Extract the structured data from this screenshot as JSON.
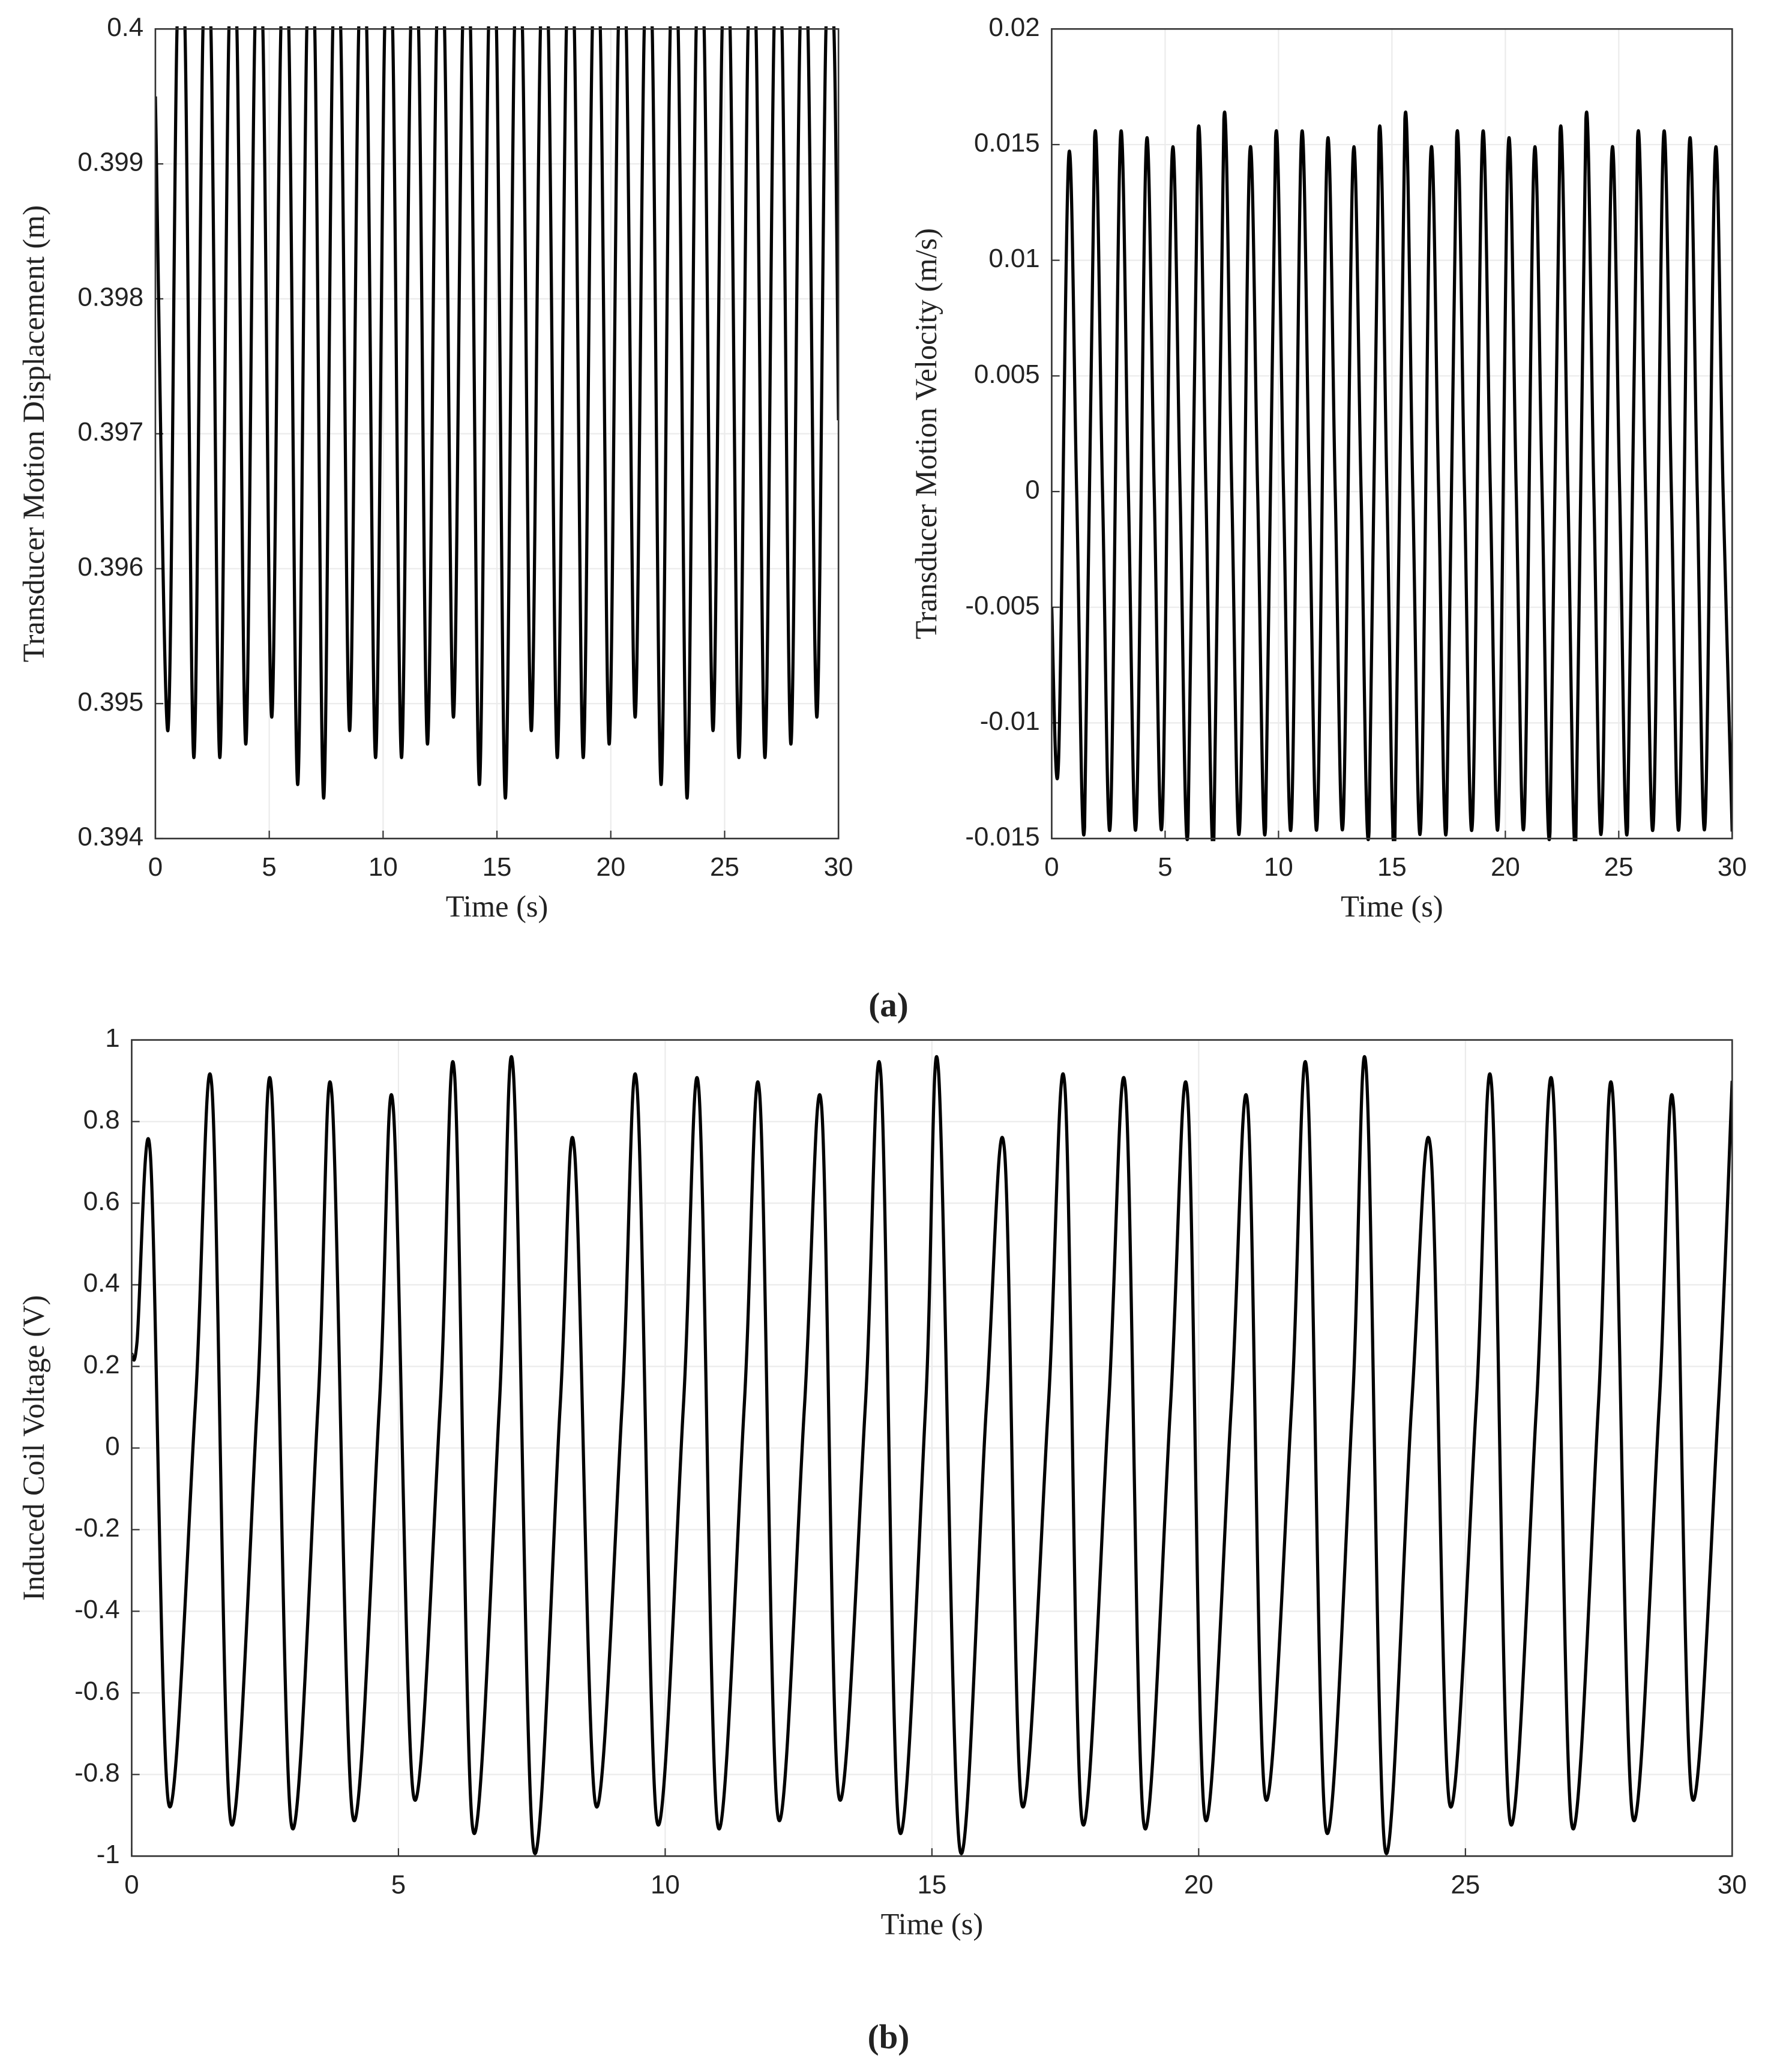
{
  "chart_data": [
    {
      "type": "line",
      "ylabel": "Transducer Motion Displacement (m)",
      "xlabel": "Time (s)",
      "color": "#000000",
      "grid": true,
      "xlim": [
        0,
        30
      ],
      "xticks": [
        0,
        5,
        10,
        15,
        20,
        25,
        30
      ],
      "ylim": [
        0.394,
        0.4
      ],
      "yticks": [
        0.394,
        0.395,
        0.396,
        0.397,
        0.398,
        0.399,
        0.4
      ],
      "x": [
        0,
        0.55,
        0.95,
        1.3,
        1.69,
        2.09,
        2.44,
        2.83,
        3.23,
        3.58,
        3.97,
        4.37,
        4.72,
        5.11,
        5.51,
        5.86,
        6.25,
        6.65,
        7.0,
        7.39,
        7.79,
        8.14,
        8.53,
        8.93,
        9.28,
        9.67,
        10.07,
        10.42,
        10.81,
        11.21,
        11.56,
        11.95,
        12.35,
        12.7,
        13.09,
        13.49,
        13.84,
        14.23,
        14.63,
        14.98,
        15.37,
        15.77,
        16.12,
        16.51,
        16.91,
        17.26,
        17.65,
        18.05,
        18.4,
        18.79,
        19.19,
        19.54,
        19.93,
        20.33,
        20.68,
        21.07,
        21.47,
        21.82,
        22.21,
        22.61,
        22.96,
        23.35,
        23.75,
        24.1,
        24.49,
        24.89,
        25.24,
        25.63,
        26.03,
        26.38,
        26.77,
        27.17,
        27.52,
        27.91,
        28.31,
        28.66,
        29.05,
        29.45,
        29.8,
        30
      ],
      "values": [
        0.3995,
        0.3948,
        0.4,
        0.4,
        0.3946,
        0.4,
        0.4,
        0.3946,
        0.4,
        0.4,
        0.3947,
        0.4,
        0.4,
        0.3949,
        0.4,
        0.4,
        0.3944,
        0.4,
        0.4,
        0.3943,
        0.4,
        0.4,
        0.3948,
        0.4,
        0.4,
        0.3946,
        0.4,
        0.4,
        0.3946,
        0.4,
        0.4,
        0.3947,
        0.4,
        0.4,
        0.3949,
        0.4,
        0.4,
        0.3944,
        0.4,
        0.4,
        0.3943,
        0.4,
        0.4,
        0.3948,
        0.4,
        0.4,
        0.3946,
        0.4,
        0.4,
        0.3946,
        0.4,
        0.4,
        0.3947,
        0.4,
        0.4,
        0.3949,
        0.4,
        0.4,
        0.3944,
        0.4,
        0.4,
        0.3943,
        0.4,
        0.4,
        0.3948,
        0.4,
        0.4,
        0.3946,
        0.4,
        0.4,
        0.3946,
        0.4,
        0.4,
        0.3947,
        0.4,
        0.4,
        0.3949,
        0.4,
        0.4,
        0.3971
      ]
    },
    {
      "type": "line",
      "ylabel": "Transducer Motion Velocity (m/s)",
      "xlabel": "Time (s)",
      "color": "#000000",
      "grid": true,
      "xlim": [
        0,
        30
      ],
      "xticks": [
        0,
        5,
        10,
        15,
        20,
        25,
        30
      ],
      "ylim": [
        -0.015,
        0.02
      ],
      "yticks": [
        -0.015,
        -0.01,
        -0.005,
        0,
        0.005,
        0.01,
        0.015,
        0.02
      ],
      "x": [
        0,
        0.3,
        0.75,
        1.1,
        1.45,
        1.89,
        2.24,
        2.59,
        3.03,
        3.38,
        3.73,
        4.17,
        4.52,
        4.87,
        5.31,
        5.66,
        6.01,
        6.45,
        6.8,
        7.15,
        7.59,
        7.94,
        8.29,
        8.73,
        9.08,
        9.43,
        9.87,
        10.22,
        10.57,
        11.01,
        11.36,
        11.71,
        12.15,
        12.5,
        12.85,
        13.29,
        13.64,
        13.99,
        14.43,
        14.78,
        15.13,
        15.57,
        15.92,
        16.27,
        16.71,
        17.06,
        17.41,
        17.85,
        18.2,
        18.55,
        18.99,
        19.34,
        19.69,
        20.13,
        20.48,
        20.83,
        21.27,
        21.62,
        21.97,
        22.41,
        22.76,
        23.11,
        23.55,
        23.9,
        24.25,
        24.69,
        25.04,
        25.39,
        25.83,
        26.18,
        26.53,
        26.97,
        27.32,
        27.67,
        28.11,
        28.46,
        28.81,
        29.25,
        29.6,
        30
      ],
      "values": [
        -0.005,
        -0.0117,
        0.0145,
        0,
        -0.0145,
        0.0153,
        0,
        -0.0143,
        0.0153,
        0,
        -0.0143,
        0.015,
        0,
        -0.0143,
        0.0146,
        0,
        -0.0147,
        0.0155,
        0,
        -0.015,
        0.0161,
        0,
        -0.0145,
        0.0146,
        0,
        -0.0145,
        0.0153,
        0,
        -0.0143,
        0.0153,
        0,
        -0.0143,
        0.015,
        0,
        -0.0143,
        0.0146,
        0,
        -0.0147,
        0.0155,
        0,
        -0.015,
        0.0161,
        0,
        -0.0145,
        0.0146,
        0,
        -0.0145,
        0.0153,
        0,
        -0.0143,
        0.0153,
        0,
        -0.0143,
        0.015,
        0,
        -0.0143,
        0.0146,
        0,
        -0.0147,
        0.0155,
        0,
        -0.015,
        0.0161,
        0,
        -0.0145,
        0.0146,
        0,
        -0.0145,
        0.0153,
        0,
        -0.0143,
        0.0153,
        0,
        -0.0143,
        0.015,
        0,
        -0.0143,
        0.0146,
        0,
        -0.0147
      ]
    },
    {
      "type": "line",
      "ylabel": "Induced Coil Voltage (V)",
      "xlabel": "Time (s)",
      "color": "#000000",
      "grid": true,
      "xlim": [
        0,
        30
      ],
      "xticks": [
        0,
        5,
        10,
        15,
        20,
        25,
        30
      ],
      "ylim": [
        -1,
        1
      ],
      "yticks": [
        -1,
        -0.8,
        -0.6,
        -0.4,
        -0.2,
        0,
        0.2,
        0.4,
        0.6,
        0.8,
        1
      ],
      "x": [
        0,
        0.1,
        0.35,
        0.69,
        1.19,
        1.5,
        1.85,
        2.35,
        2.62,
        2.99,
        3.49,
        3.75,
        4.14,
        4.64,
        4.9,
        5.28,
        5.78,
        6.05,
        6.39,
        6.89,
        7.15,
        7.53,
        8.03,
        8.3,
        8.69,
        9.19,
        9.47,
        9.84,
        10.34,
        10.63,
        10.98,
        11.48,
        11.77,
        12.11,
        12.61,
        12.93,
        13.25,
        13.75,
        14.04,
        14.38,
        14.88,
        15.12,
        15.52,
        16.02,
        16.36,
        16.68,
        17.18,
        17.49,
        17.81,
        18.31,
        18.63,
        18.97,
        19.47,
        19.79,
        20.11,
        20.61,
        20.92,
        21.24,
        21.74,
        22.03,
        22.38,
        22.88,
        23.14,
        23.49,
        23.99,
        24.35,
        24.7,
        25.2,
        25.49,
        25.83,
        26.33,
        26.64,
        26.99,
        27.49,
        27.76,
        28.13,
        28.63,
        28.9,
        29.24,
        29.74,
        30
      ],
      "values": [
        0.23,
        0.26,
        0.72,
        -0.87,
        0.1,
        0.89,
        -0.91,
        0.1,
        0.88,
        -0.92,
        0.1,
        0.87,
        -0.9,
        0.1,
        0.84,
        -0.85,
        0.1,
        0.92,
        -0.93,
        0.1,
        0.93,
        -0.98,
        0.1,
        0.73,
        -0.87,
        0.1,
        0.89,
        -0.91,
        0.1,
        0.88,
        -0.92,
        0.1,
        0.87,
        -0.9,
        0.1,
        0.84,
        -0.85,
        0.1,
        0.92,
        -0.93,
        0.1,
        0.93,
        -0.98,
        0.1,
        0.73,
        -0.87,
        0.1,
        0.89,
        -0.91,
        0.1,
        0.88,
        -0.92,
        0.1,
        0.87,
        -0.9,
        0.1,
        0.84,
        -0.85,
        0.1,
        0.92,
        -0.93,
        0.1,
        0.93,
        -0.98,
        0.1,
        0.73,
        -0.87,
        0.1,
        0.89,
        -0.91,
        0.1,
        0.88,
        -0.92,
        0.1,
        0.87,
        -0.9,
        0.1,
        0.84,
        -0.85,
        0.1,
        0.9
      ]
    }
  ],
  "panel_labels": [
    "(a)",
    "(b)"
  ]
}
